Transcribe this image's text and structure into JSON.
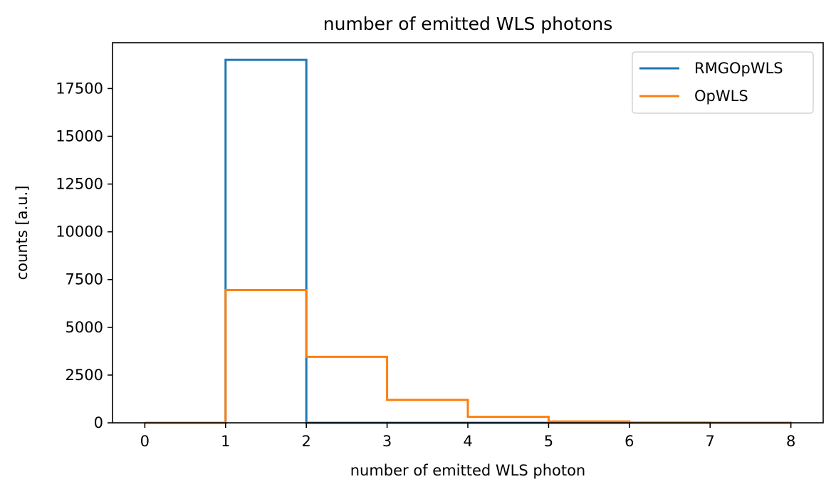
{
  "chart_data": {
    "type": "line",
    "drawstyle": "steps-post",
    "title": "number of emitted WLS photons",
    "xlabel": "number of emitted WLS photon",
    "ylabel": "counts [a.u.]",
    "xlim": [
      -0.4,
      8.4
    ],
    "ylim": [
      0,
      19900
    ],
    "xticks": [
      0,
      1,
      2,
      3,
      4,
      5,
      6,
      7,
      8
    ],
    "yticks": [
      0,
      2500,
      5000,
      7500,
      10000,
      12500,
      15000,
      17500
    ],
    "bin_edges": [
      0,
      1,
      2,
      3,
      4,
      5,
      6,
      7,
      8
    ],
    "grid": false,
    "legend_position": "top-right",
    "series": [
      {
        "name": "RMGOpWLS",
        "color": "#1f77b4",
        "values": [
          0,
          19000,
          0,
          0,
          0,
          0,
          0,
          0
        ]
      },
      {
        "name": "OpWLS",
        "color": "#ff7f0e",
        "values": [
          0,
          6950,
          3450,
          1200,
          310,
          70,
          15,
          5
        ]
      }
    ]
  }
}
